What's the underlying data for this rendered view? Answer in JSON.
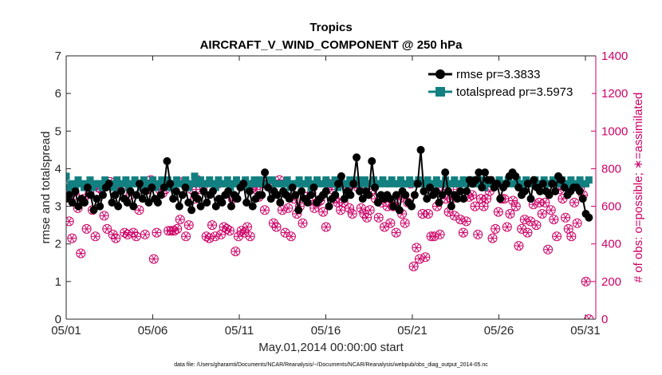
{
  "chart_data": {
    "type": "line",
    "title": "Tropics",
    "subtitle": "AIRCRAFT_V_WIND_COMPONENT @ 250 hPa",
    "xlabel": "May.01,2014 00:00:00 start",
    "ylabel": "rmse and totalspread",
    "y2label": "# of obs: o=possible; ∗=assimilated",
    "xlim": [
      1,
      31.6
    ],
    "ylim": [
      0,
      7
    ],
    "y2lim": [
      0,
      1400
    ],
    "x_ticks": [
      1,
      6,
      11,
      16,
      21,
      26,
      31
    ],
    "x_tick_labels": [
      "05/01",
      "05/06",
      "05/11",
      "05/16",
      "05/21",
      "05/26",
      "05/31"
    ],
    "y_ticks": [
      "0",
      "1",
      "2",
      "3",
      "4",
      "5",
      "6",
      "7"
    ],
    "y2_ticks": [
      "0",
      "200",
      "400",
      "600",
      "800",
      "1000",
      "1200",
      "1400"
    ],
    "legend_position": "top-right",
    "colors": {
      "rmse": "#000000",
      "spread": "#128080",
      "obs": "#cc0066"
    },
    "series": [
      {
        "name": "rmse pr=3.3833",
        "axis": "left",
        "values": [
          3.2,
          3.3,
          3.1,
          3.4,
          3.0,
          3.2,
          3.1,
          3.5,
          3.3,
          2.9,
          3.2,
          3.0,
          3.3,
          3.5,
          3.6,
          3.1,
          3.3,
          3.0,
          3.4,
          3.2,
          3.1,
          3.4,
          3.0,
          3.3,
          3.6,
          3.2,
          3.4,
          3.1,
          3.5,
          3.2,
          3.1,
          3.3,
          3.5,
          4.2,
          3.6,
          3.2,
          3.4,
          3.0,
          3.3,
          3.5,
          3.1,
          2.9,
          3.3,
          3.2,
          3.0,
          3.4,
          3.1,
          3.3,
          3.4,
          3.0,
          3.2,
          3.1,
          3.3,
          3.4,
          3.0,
          3.3,
          3.2,
          3.5,
          3.6,
          3.1,
          3.4,
          3.0,
          3.2,
          3.3,
          3.3,
          3.9,
          3.5,
          3.2,
          3.4,
          3.3,
          3.1,
          3.4,
          3.3,
          3.2,
          3.5,
          3.3,
          2.9,
          3.4,
          3.2,
          3.1,
          3.3,
          3.5,
          3.1,
          3.2,
          3.3,
          3.4,
          3.0,
          3.2,
          3.3,
          3.6,
          3.8,
          3.2,
          3.4,
          3.3,
          3.6,
          4.3,
          3.4,
          3.2,
          3.4,
          3.3,
          4.2,
          3.5,
          3.1,
          3.3,
          3.2,
          3.3,
          3.2,
          3.0,
          3.3,
          2.9,
          3.4,
          3.3,
          3.1,
          3.0,
          3.3,
          3.6,
          4.5,
          3.4,
          3.2,
          3.5,
          3.3,
          3.4,
          3.1,
          3.3,
          3.9,
          3.4,
          3.0,
          3.3,
          3.2,
          3.4,
          3.2,
          3.4,
          3.7,
          3.6,
          3.7,
          3.9,
          3.5,
          3.9,
          3.7,
          3.7,
          3.5,
          3.6,
          3.2,
          3.5,
          3.6,
          3.8,
          3.9,
          3.8,
          3.5,
          3.3,
          3.4,
          3.6,
          3.2,
          3.7,
          3.5,
          3.4,
          3.6,
          3.4,
          3.3,
          3.6,
          3.4,
          3.8,
          3.7,
          3.5,
          3.3,
          3.4,
          3.5,
          3.5,
          3.4,
          3.2,
          2.8,
          2.7
        ]
      },
      {
        "name": "totalspread pr=3.5973",
        "axis": "left",
        "values": [
          3.8,
          3.5,
          3.6,
          3.5,
          3.7,
          3.6,
          3.5,
          3.6,
          3.7,
          3.5,
          3.6,
          3.6,
          3.5,
          3.7,
          3.6,
          3.6,
          3.5,
          3.7,
          3.6,
          3.6,
          3.7,
          3.5,
          3.6,
          3.7,
          3.6,
          3.5,
          3.7,
          3.6,
          3.6,
          3.7,
          3.5,
          3.6,
          3.7,
          3.6,
          3.7,
          3.5,
          3.6,
          3.7,
          3.6,
          3.6,
          3.7,
          3.5,
          3.6,
          3.8,
          3.6,
          3.7,
          3.6,
          3.6,
          3.7,
          3.6,
          3.5,
          3.7,
          3.6,
          3.6,
          3.7,
          3.5,
          3.6,
          3.7,
          3.6,
          3.6,
          3.7,
          3.5,
          3.6,
          3.7,
          3.6,
          3.7,
          3.6,
          3.6,
          3.7,
          3.7,
          3.6,
          3.6,
          3.6,
          3.6,
          3.7,
          3.5,
          3.6,
          3.6,
          3.7,
          3.6,
          3.6,
          3.7,
          3.5,
          3.6,
          3.7,
          3.6,
          3.6,
          3.7,
          3.6,
          3.6,
          3.7,
          3.5,
          3.7,
          3.6,
          3.6,
          3.7,
          3.6,
          3.6,
          3.7,
          3.6,
          3.7,
          3.6,
          3.6,
          3.7,
          3.6,
          3.6,
          3.7,
          3.6,
          3.6,
          3.7,
          3.6,
          3.6,
          3.7,
          3.6,
          3.6,
          3.7,
          3.6,
          3.6,
          3.7,
          3.6,
          3.6,
          3.7,
          3.6,
          3.6,
          3.7,
          3.6,
          3.6,
          3.7,
          3.6,
          3.6,
          3.7,
          3.6,
          3.6,
          3.7,
          3.6,
          3.6,
          3.7,
          3.6,
          3.6,
          3.7,
          3.5,
          3.6,
          3.7,
          3.6,
          3.6,
          3.7,
          3.6,
          3.6,
          3.7,
          3.6,
          3.6,
          3.7,
          3.6,
          3.6,
          3.7,
          3.6,
          3.6,
          3.7,
          3.6,
          3.6,
          3.7,
          3.6,
          3.6,
          3.7,
          3.6,
          3.6,
          3.7,
          3.6,
          3.6,
          3.7,
          3.6,
          3.6,
          3.7,
          3.6,
          3.6,
          3.7
        ]
      },
      {
        "name": "obs possible",
        "axis": "right",
        "values": [
          690,
          520,
          430,
          660,
          590,
          350,
          640,
          480,
          670,
          580,
          440,
          700,
          690,
          550,
          480,
          730,
          450,
          430,
          700,
          710,
          460,
          450,
          660,
          460,
          440,
          580,
          700,
          450,
          690,
          740,
          320,
          460,
          690,
          670,
          690,
          470,
          470,
          470,
          480,
          530,
          730,
          440,
          500,
          690,
          640,
          740,
          690,
          710,
          440,
          430,
          500,
          440,
          720,
          450,
          490,
          480,
          470,
          640,
          360,
          440,
          470,
          460,
          490,
          440,
          700,
          690,
          650,
          720,
          580,
          720,
          700,
          510,
          490,
          740,
          580,
          460,
          590,
          440,
          640,
          560,
          600,
          510,
          650,
          630,
          670,
          590,
          620,
          630,
          570,
          490,
          720,
          690,
          640,
          620,
          580,
          620,
          700,
          590,
          560,
          720,
          700,
          590,
          560,
          540,
          580,
          690,
          640,
          540,
          620,
          490,
          600,
          510,
          600,
          460,
          640,
          560,
          510,
          620,
          720,
          280,
          380,
          320,
          560,
          330,
          560,
          440,
          440,
          600,
          450,
          700,
          640,
          570,
          640,
          550,
          690,
          530,
          460,
          520,
          650,
          660,
          600,
          450,
          640,
          600,
          640,
          680,
          430,
          480,
          570,
          640,
          640,
          490,
          560,
          630,
          600,
          390,
          480,
          530,
          460,
          520,
          610,
          500,
          620,
          560,
          620,
          370,
          580,
          530,
          440,
          690,
          640,
          540,
          480,
          440,
          620,
          510,
          700,
          660,
          200,
          0
        ]
      }
    ]
  },
  "footnote": "data file: /Users/gharamti/Documents/NCAR/Reanalysis/~/Documents/NCAR/Reanalysis/webpub/obs_diag_output_2014-05.nc"
}
